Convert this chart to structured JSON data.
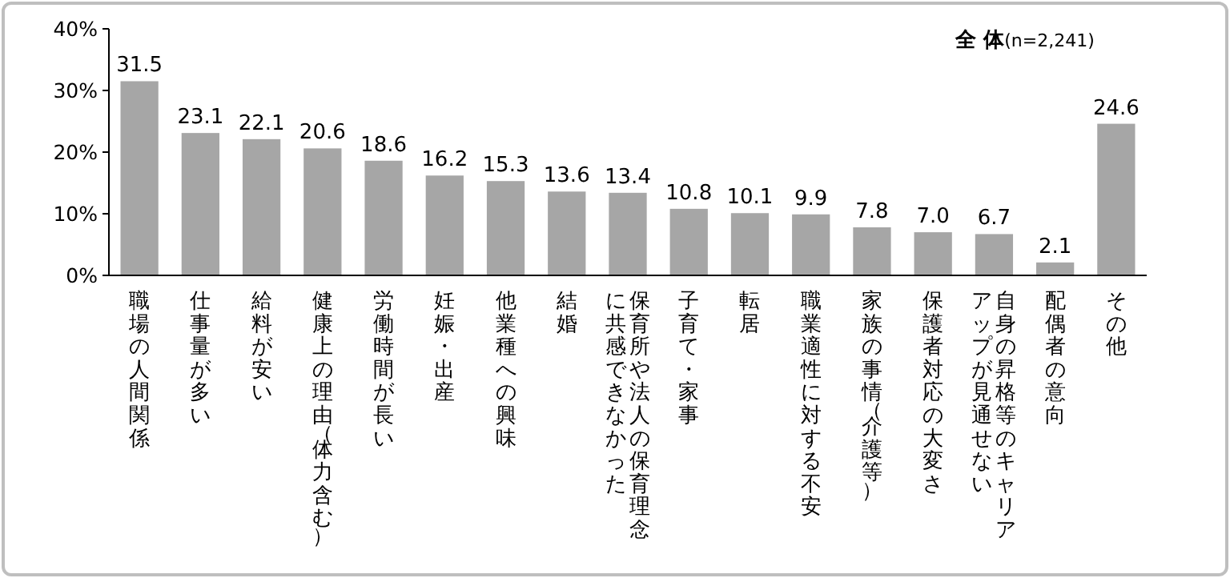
{
  "chart_data": {
    "type": "bar",
    "title": "全 体",
    "subtitle": "(n=2,241)",
    "categories": [
      "職場の人間関係",
      "仕事量が多い",
      "給料が安い",
      "健康上の理由（体力含む）",
      "労働時間が長い",
      "妊娠・出産",
      "他業種への興味",
      "結婚",
      "保育所や法人の保育理念に共感できなかった",
      "子育て・家事",
      "転居",
      "職業適性に対する不安",
      "家族の事情（介護等）",
      "保護者対応の大変さ",
      "自身の昇格等のキャリアアップが見通せない",
      "配偶者の意向",
      "その他"
    ],
    "values": [
      31.5,
      23.1,
      22.1,
      20.6,
      18.6,
      16.2,
      15.3,
      13.6,
      13.4,
      10.8,
      10.1,
      9.9,
      7.8,
      7.0,
      6.7,
      2.1,
      24.6
    ],
    "value_labels": [
      "31.5",
      "23.1",
      "22.1",
      "20.6",
      "18.6",
      "16.2",
      "15.3",
      "13.6",
      "13.4",
      "10.8",
      "10.1",
      "9.9",
      "7.8",
      "7.0",
      "6.7",
      "2.1",
      "24.6"
    ],
    "color": "#a6a6a6",
    "ylim": [
      0,
      40
    ],
    "yticks": [
      {
        "value": 0,
        "label": "0%"
      },
      {
        "value": 10,
        "label": "10%"
      },
      {
        "value": 20,
        "label": "20%"
      },
      {
        "value": 30,
        "label": "30%"
      },
      {
        "value": 40,
        "label": "40%"
      }
    ],
    "grid": false
  }
}
